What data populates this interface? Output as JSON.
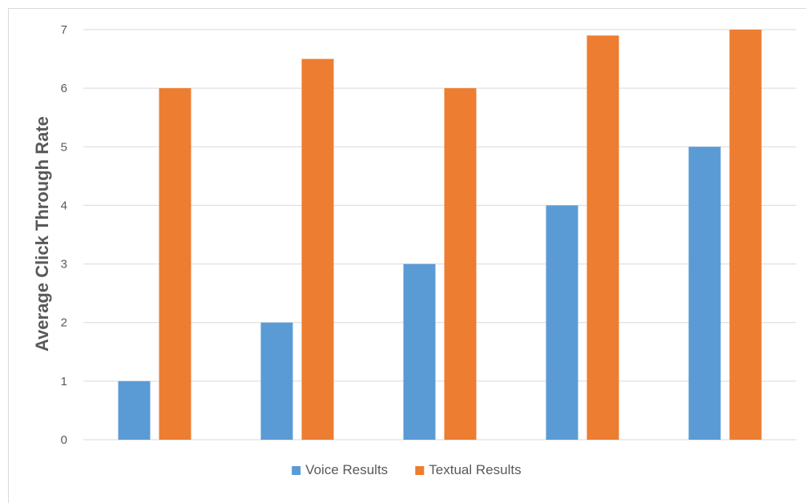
{
  "chart_data": {
    "type": "bar",
    "categories": [
      "",
      "",
      "",
      "",
      ""
    ],
    "series": [
      {
        "name": "Voice Results",
        "values": [
          1,
          2,
          3,
          4,
          5
        ],
        "color": "#5b9bd5"
      },
      {
        "name": "Textual Results",
        "values": [
          6,
          6.5,
          6,
          6.9,
          7
        ],
        "color": "#ed7d31"
      }
    ],
    "title": "",
    "xlabel": "",
    "ylabel": "Average Click Through Rate",
    "ylim": [
      0,
      7
    ],
    "yticks": [
      "0",
      "1",
      "2",
      "3",
      "4",
      "5",
      "6",
      "7"
    ],
    "grid": true,
    "gridline_color": "#d9d9d9",
    "legend_position": "bottom"
  }
}
